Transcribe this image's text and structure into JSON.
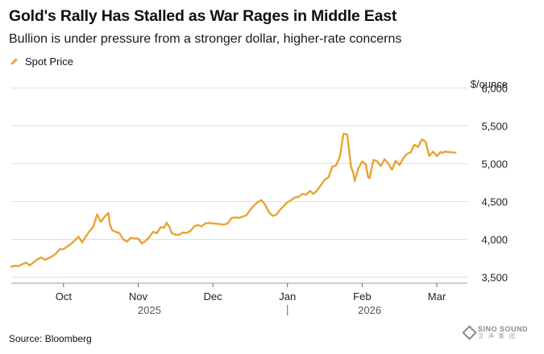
{
  "chart_data": {
    "type": "line",
    "title": "Gold's Rally Has Stalled as War Rages in Middle East",
    "subtitle": "Bullion is under pressure from a stronger dollar, higher-rate concerns",
    "ylabel": "$/ounce",
    "ylim": [
      3420,
      6100
    ],
    "yticks": [
      {
        "value": 3500,
        "label": "3,500"
      },
      {
        "value": 4000,
        "label": "4,000"
      },
      {
        "value": 4500,
        "label": "4,500"
      },
      {
        "value": 5000,
        "label": "5,000"
      },
      {
        "value": 5500,
        "label": "5,500"
      },
      {
        "value": 6000,
        "label": "6,000"
      }
    ],
    "xlim": [
      -0.7,
      5.95
    ],
    "xticks": [
      {
        "value": 0,
        "label": "Oct"
      },
      {
        "value": 1,
        "label": "Nov"
      },
      {
        "value": 2,
        "label": "Dec"
      },
      {
        "value": 3,
        "label": "Jan"
      },
      {
        "value": 4,
        "label": "Feb"
      },
      {
        "value": 5,
        "label": "Mar"
      }
    ],
    "year_labels": [
      {
        "value": 1.15,
        "label": "2025"
      },
      {
        "value": 4.1,
        "label": "2026"
      }
    ],
    "year_divider": 3,
    "series": [
      {
        "name": "Spot Price",
        "color": "#E8A434",
        "x": [
          -0.7,
          -0.65,
          -0.6,
          -0.55,
          -0.5,
          -0.45,
          -0.4,
          -0.35,
          -0.3,
          -0.25,
          -0.2,
          -0.15,
          -0.1,
          -0.05,
          0,
          0.05,
          0.1,
          0.15,
          0.2,
          0.25,
          0.3,
          0.35,
          0.4,
          0.45,
          0.5,
          0.55,
          0.6,
          0.62,
          0.65,
          0.7,
          0.75,
          0.8,
          0.85,
          0.9,
          0.95,
          1.0,
          1.05,
          1.1,
          1.15,
          1.2,
          1.25,
          1.3,
          1.35,
          1.38,
          1.42,
          1.45,
          1.5,
          1.55,
          1.6,
          1.65,
          1.7,
          1.75,
          1.8,
          1.85,
          1.9,
          1.95,
          2.0,
          2.05,
          2.1,
          2.15,
          2.2,
          2.25,
          2.3,
          2.35,
          2.4,
          2.45,
          2.5,
          2.55,
          2.6,
          2.65,
          2.7,
          2.75,
          2.8,
          2.85,
          2.9,
          2.95,
          3.0,
          3.05,
          3.1,
          3.15,
          3.2,
          3.25,
          3.3,
          3.35,
          3.4,
          3.45,
          3.5,
          3.55,
          3.6,
          3.65,
          3.7,
          3.75,
          3.8,
          3.85,
          3.88,
          3.9,
          3.95,
          4.0,
          4.05,
          4.08,
          4.1,
          4.15,
          4.2,
          4.25,
          4.3,
          4.35,
          4.4,
          4.45,
          4.5,
          4.55,
          4.6,
          4.65,
          4.7,
          4.75,
          4.8,
          4.85,
          4.9,
          4.95,
          5.0,
          5.05,
          5.08,
          5.1,
          5.15,
          5.2,
          5.25
        ],
        "values": [
          3640,
          3650,
          3648,
          3672,
          3690,
          3655,
          3700,
          3735,
          3760,
          3730,
          3750,
          3775,
          3815,
          3870,
          3870,
          3905,
          3940,
          3985,
          4035,
          3960,
          4040,
          4110,
          4170,
          4330,
          4230,
          4300,
          4350,
          4200,
          4120,
          4100,
          4080,
          4000,
          3970,
          4020,
          4010,
          4010,
          3945,
          3980,
          4030,
          4100,
          4080,
          4160,
          4155,
          4220,
          4160,
          4080,
          4060,
          4060,
          4090,
          4085,
          4110,
          4170,
          4190,
          4170,
          4210,
          4215,
          4210,
          4205,
          4200,
          4195,
          4210,
          4280,
          4290,
          4285,
          4300,
          4320,
          4390,
          4445,
          4490,
          4520,
          4460,
          4360,
          4310,
          4325,
          4390,
          4440,
          4490,
          4520,
          4555,
          4560,
          4600,
          4590,
          4640,
          4600,
          4650,
          4720,
          4790,
          4820,
          4960,
          4975,
          5090,
          5395,
          5385,
          4960,
          4880,
          4770,
          4940,
          5030,
          4990,
          4820,
          4810,
          5050,
          5030,
          4970,
          5060,
          5000,
          4920,
          5040,
          4980,
          5070,
          5130,
          5150,
          5250,
          5220,
          5320,
          5290,
          5100,
          5160,
          5100,
          5155,
          5140,
          5160,
          5155,
          5150,
          5145
        ]
      }
    ]
  },
  "legend": {
    "label": "Spot Price"
  },
  "source": "Source: Bloomberg",
  "watermark": {
    "main": "SINO SOUND",
    "sub": "汉 声 集 团"
  }
}
